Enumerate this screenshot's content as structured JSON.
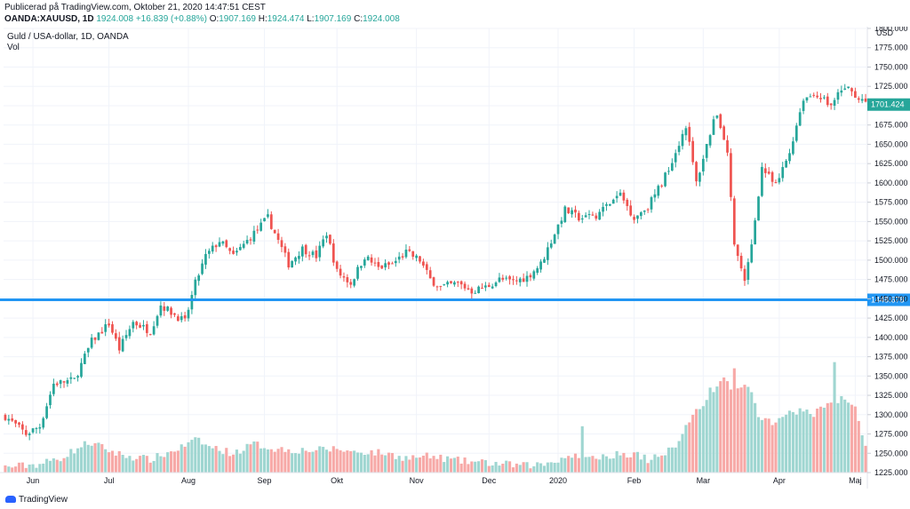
{
  "header": {
    "published": "Publicerad på TradingView.com, Oktober 21, 2020 14:47:51 CEST",
    "symbol": "OANDA:XAUUSD, 1D",
    "last": "1924.008",
    "change": "+16.839 (+0.88%)",
    "o_label": "O:",
    "o": "1907.169",
    "h_label": "H:",
    "h": "1924.474",
    "l_label": "L:",
    "l": "1907.169",
    "c_label": "C:",
    "c": "1924.008"
  },
  "legend": {
    "instrument": "Guld / USA-dollar, 1D, OANDA",
    "vol": "Vol"
  },
  "footer": {
    "brand": "TradingView"
  },
  "colors": {
    "up": "#26a69a",
    "down": "#ef5350",
    "vol_up": "#9fd6d1",
    "vol_down": "#f7a9a7",
    "hline": "#2196f3",
    "price_badge": "#26a69a"
  },
  "chart_data": {
    "type": "candlestick",
    "currency": "USD",
    "ylim": [
      1225,
      1800
    ],
    "yticks": [
      "1800.000",
      "1775.000",
      "1750.000",
      "1725.000",
      "1700.000",
      "1675.000",
      "1650.000",
      "1625.000",
      "1600.000",
      "1575.000",
      "1550.000",
      "1525.000",
      "1500.000",
      "1475.000",
      "1450.000",
      "1425.000",
      "1400.000",
      "1375.000",
      "1350.000",
      "1325.000",
      "1300.000",
      "1275.000",
      "1250.000",
      "1225.000"
    ],
    "x_ticks": [
      {
        "label": "Jun",
        "i": 8
      },
      {
        "label": "Jul",
        "i": 30
      },
      {
        "label": "Aug",
        "i": 53
      },
      {
        "label": "Sep",
        "i": 75
      },
      {
        "label": "Okt",
        "i": 96
      },
      {
        "label": "Nov",
        "i": 119
      },
      {
        "label": "Dec",
        "i": 140
      },
      {
        "label": "2020",
        "i": 160
      },
      {
        "label": "Feb",
        "i": 182
      },
      {
        "label": "Mar",
        "i": 202
      },
      {
        "label": "Apr",
        "i": 224
      },
      {
        "label": "Maj",
        "i": 246
      }
    ],
    "last_price": "1701.424",
    "horizontal_line": "1448.678",
    "close_keypoints": [
      [
        0,
        1298
      ],
      [
        6,
        1275
      ],
      [
        10,
        1285
      ],
      [
        14,
        1340
      ],
      [
        20,
        1345
      ],
      [
        25,
        1395
      ],
      [
        30,
        1418
      ],
      [
        33,
        1385
      ],
      [
        37,
        1420
      ],
      [
        42,
        1408
      ],
      [
        45,
        1442
      ],
      [
        52,
        1420
      ],
      [
        55,
        1470
      ],
      [
        58,
        1505
      ],
      [
        62,
        1525
      ],
      [
        66,
        1505
      ],
      [
        71,
        1530
      ],
      [
        76,
        1555
      ],
      [
        79,
        1525
      ],
      [
        82,
        1495
      ],
      [
        86,
        1515
      ],
      [
        90,
        1505
      ],
      [
        93,
        1535
      ],
      [
        96,
        1485
      ],
      [
        100,
        1470
      ],
      [
        104,
        1505
      ],
      [
        108,
        1490
      ],
      [
        112,
        1495
      ],
      [
        116,
        1510
      ],
      [
        120,
        1500
      ],
      [
        123,
        1475
      ],
      [
        126,
        1465
      ],
      [
        131,
        1470
      ],
      [
        135,
        1460
      ],
      [
        139,
        1465
      ],
      [
        143,
        1475
      ],
      [
        147,
        1472
      ],
      [
        151,
        1478
      ],
      [
        155,
        1495
      ],
      [
        158,
        1525
      ],
      [
        162,
        1565
      ],
      [
        166,
        1555
      ],
      [
        170,
        1555
      ],
      [
        174,
        1570
      ],
      [
        178,
        1585
      ],
      [
        182,
        1555
      ],
      [
        186,
        1570
      ],
      [
        190,
        1600
      ],
      [
        194,
        1640
      ],
      [
        197,
        1675
      ],
      [
        200,
        1600
      ],
      [
        204,
        1665
      ],
      [
        206,
        1690
      ],
      [
        209,
        1640
      ],
      [
        211,
        1520
      ],
      [
        214,
        1470
      ],
      [
        216,
        1520
      ],
      [
        219,
        1620
      ],
      [
        223,
        1595
      ],
      [
        227,
        1640
      ],
      [
        231,
        1710
      ],
      [
        235,
        1715
      ],
      [
        239,
        1700
      ],
      [
        243,
        1725
      ],
      [
        247,
        1710
      ],
      [
        249,
        1701
      ]
    ],
    "volume_keypoints": [
      [
        0,
        1232
      ],
      [
        10,
        1236
      ],
      [
        16,
        1244
      ],
      [
        20,
        1254
      ],
      [
        24,
        1264
      ],
      [
        28,
        1258
      ],
      [
        32,
        1250
      ],
      [
        36,
        1246
      ],
      [
        42,
        1242
      ],
      [
        48,
        1252
      ],
      [
        53,
        1262
      ],
      [
        56,
        1268
      ],
      [
        58,
        1260
      ],
      [
        62,
        1255
      ],
      [
        66,
        1250
      ],
      [
        72,
        1262
      ],
      [
        78,
        1256
      ],
      [
        84,
        1254
      ],
      [
        90,
        1254
      ],
      [
        96,
        1256
      ],
      [
        100,
        1252
      ],
      [
        104,
        1252
      ],
      [
        110,
        1250
      ],
      [
        116,
        1244
      ],
      [
        122,
        1246
      ],
      [
        126,
        1244
      ],
      [
        132,
        1240
      ],
      [
        138,
        1238
      ],
      [
        144,
        1236
      ],
      [
        150,
        1234
      ],
      [
        156,
        1236
      ],
      [
        160,
        1242
      ],
      [
        164,
        1248
      ],
      [
        170,
        1246
      ],
      [
        176,
        1248
      ],
      [
        182,
        1250
      ],
      [
        186,
        1242
      ],
      [
        190,
        1246
      ],
      [
        194,
        1262
      ],
      [
        197,
        1285
      ],
      [
        200,
        1305
      ],
      [
        204,
        1325
      ],
      [
        208,
        1345
      ],
      [
        212,
        1330
      ],
      [
        215,
        1340
      ],
      [
        218,
        1300
      ],
      [
        222,
        1290
      ],
      [
        226,
        1300
      ],
      [
        230,
        1305
      ],
      [
        234,
        1300
      ],
      [
        238,
        1312
      ],
      [
        242,
        1320
      ],
      [
        246,
        1310
      ],
      [
        249,
        1255
      ]
    ],
    "volume_spikes": [
      [
        167,
        1285
      ],
      [
        204,
        1335
      ],
      [
        211,
        1360
      ],
      [
        240,
        1368
      ]
    ]
  }
}
